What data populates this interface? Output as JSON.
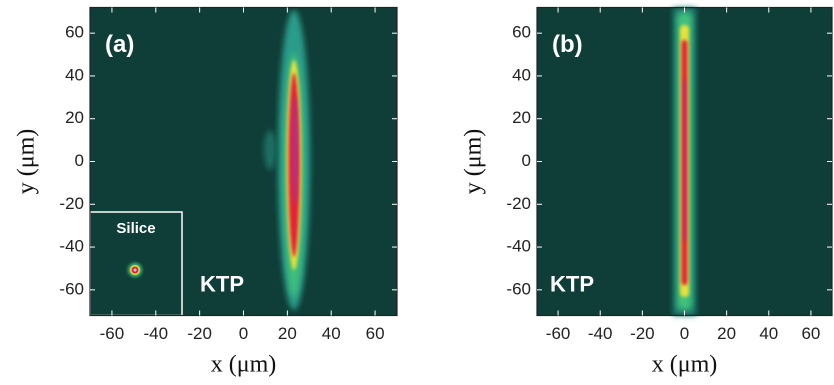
{
  "chart_data": [
    {
      "type": "heatmap",
      "panel_label": "(a)",
      "annotation": "KTP",
      "inset_label": "Silice",
      "xlabel": "x (μm)",
      "ylabel": "y (μm)",
      "xlim": [
        -70,
        70
      ],
      "ylim": [
        -72,
        72
      ],
      "xticks": [
        -60,
        -40,
        -20,
        0,
        20,
        40,
        60
      ],
      "yticks": [
        -60,
        -40,
        -20,
        0,
        20,
        40,
        60
      ]
    },
    {
      "type": "heatmap",
      "panel_label": "(b)",
      "annotation": "KTP",
      "xlabel": "x (μm)",
      "ylabel": "y (μm)",
      "xlim": [
        -70,
        70
      ],
      "ylim": [
        -72,
        72
      ],
      "xticks": [
        -60,
        -40,
        -20,
        0,
        20,
        40,
        60
      ],
      "yticks": [
        -60,
        -40,
        -20,
        0,
        20,
        40,
        60
      ]
    }
  ]
}
